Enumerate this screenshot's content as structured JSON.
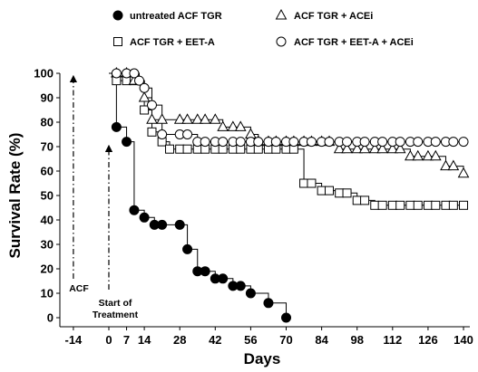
{
  "chart_data": {
    "type": "line",
    "subtype": "step",
    "xlabel": "Days",
    "ylabel": "Survival Rate (%)",
    "xlim": [
      -21,
      140
    ],
    "ylim": [
      0,
      100
    ],
    "xticks": [
      -14,
      0,
      7,
      14,
      28,
      42,
      56,
      70,
      84,
      98,
      112,
      126,
      140
    ],
    "yticks": [
      0,
      10,
      20,
      30,
      40,
      50,
      60,
      70,
      80,
      90,
      100
    ],
    "legend_position": "top",
    "annotations": [
      {
        "text": "ACF",
        "x": -14
      },
      {
        "text_lines": [
          "Start of",
          "Treatment"
        ],
        "x": 0
      }
    ],
    "series": [
      {
        "name": "untreated ACF TGR",
        "marker": "filled-circle",
        "x": [
          3,
          7,
          10,
          14,
          18,
          21,
          28,
          31,
          35,
          38,
          42,
          45,
          49,
          52,
          56,
          63,
          70
        ],
        "y": [
          78,
          72,
          44,
          41,
          38,
          38,
          38,
          28,
          19,
          19,
          16,
          16,
          13,
          13,
          10,
          6,
          0
        ]
      },
      {
        "name": "ACF TGR + EET-A",
        "marker": "open-square",
        "x": [
          3,
          7,
          10,
          14,
          17,
          21,
          24,
          28,
          31,
          35,
          38,
          42,
          45,
          49,
          52,
          56,
          59,
          63,
          66,
          70,
          73,
          77,
          80,
          84,
          87,
          91,
          94,
          98,
          101,
          105,
          108,
          112,
          115,
          119,
          122,
          126,
          129,
          133,
          136,
          140
        ],
        "y": [
          97,
          97,
          97,
          85,
          76,
          72,
          69,
          69,
          69,
          69,
          69,
          69,
          69,
          69,
          69,
          69,
          69,
          69,
          69,
          69,
          69,
          55,
          55,
          52,
          52,
          51,
          51,
          48,
          48,
          46,
          46,
          46,
          46,
          46,
          46,
          46,
          46,
          46,
          46,
          46
        ]
      },
      {
        "name": "ACF TGR + ACEi",
        "marker": "open-triangle",
        "x": [
          3,
          7,
          10,
          14,
          17,
          21,
          28,
          31,
          35,
          38,
          42,
          45,
          49,
          52,
          56,
          59,
          63,
          66,
          70,
          73,
          77,
          80,
          84,
          87,
          91,
          94,
          98,
          101,
          105,
          108,
          112,
          115,
          119,
          122,
          126,
          129,
          133,
          136,
          140
        ],
        "y": [
          100,
          100,
          97,
          90,
          81,
          81,
          81,
          81,
          81,
          81,
          81,
          78,
          78,
          78,
          75,
          72,
          72,
          72,
          72,
          72,
          72,
          72,
          72,
          72,
          69,
          69,
          69,
          69,
          69,
          69,
          69,
          69,
          66,
          66,
          66,
          66,
          62,
          62,
          59
        ]
      },
      {
        "name": "ACF TGR + EET-A + ACEi",
        "marker": "open-circle",
        "x": [
          3,
          7,
          10,
          12,
          14,
          17,
          21,
          28,
          31,
          35,
          38,
          42,
          45,
          49,
          52,
          56,
          59,
          63,
          66,
          70,
          73,
          77,
          80,
          84,
          87,
          91,
          94,
          98,
          101,
          105,
          108,
          112,
          115,
          119,
          122,
          126,
          129,
          133,
          136,
          140
        ],
        "y": [
          100,
          100,
          100,
          97,
          94,
          87,
          75,
          75,
          75,
          72,
          72,
          72,
          72,
          72,
          72,
          72,
          72,
          72,
          72,
          72,
          72,
          72,
          72,
          72,
          72,
          72,
          72,
          72,
          72,
          72,
          72,
          72,
          72,
          72,
          72,
          72,
          72,
          72,
          72,
          72
        ]
      }
    ]
  }
}
